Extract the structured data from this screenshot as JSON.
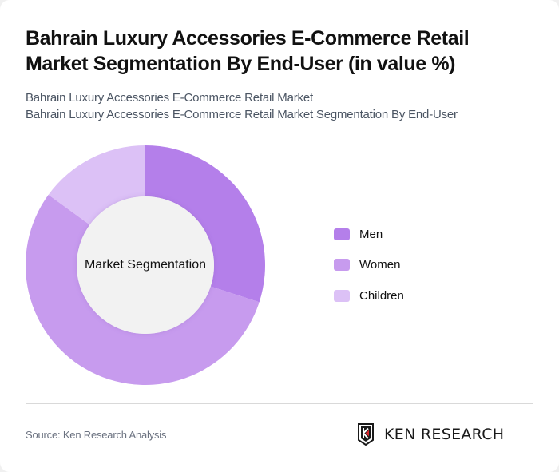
{
  "header": {
    "title": "Bahrain Luxury Accessories E-Commerce Retail Market Segmentation By End-User (in value %)",
    "subtitle_lines": [
      "Bahrain Luxury Accessories E-Commerce Retail Market",
      "Bahrain Luxury Accessories E-Commerce Retail Market Segmentation By End-User"
    ]
  },
  "chart": {
    "center_label": "Market Segmentation"
  },
  "legend": {
    "items": [
      {
        "label": "Men",
        "color": "#b47fea"
      },
      {
        "label": "Women",
        "color": "#c79bee"
      },
      {
        "label": "Children",
        "color": "#dcc1f6"
      }
    ]
  },
  "footer": {
    "source": "Source: Ken Research Analysis",
    "logo_text": "KEN RESEARCH"
  },
  "chart_data": {
    "type": "pie",
    "variant": "donut",
    "title": "Bahrain Luxury Accessories E-Commerce Retail Market Segmentation By End-User (in value %)",
    "center_label": "Market Segmentation",
    "categories": [
      "Men",
      "Women",
      "Children"
    ],
    "values": [
      30,
      55,
      15
    ],
    "colors": [
      "#b47fea",
      "#c79bee",
      "#dcc1f6"
    ],
    "unit": "%",
    "legend_position": "right",
    "start_angle_deg": 0,
    "direction": "clockwise"
  }
}
